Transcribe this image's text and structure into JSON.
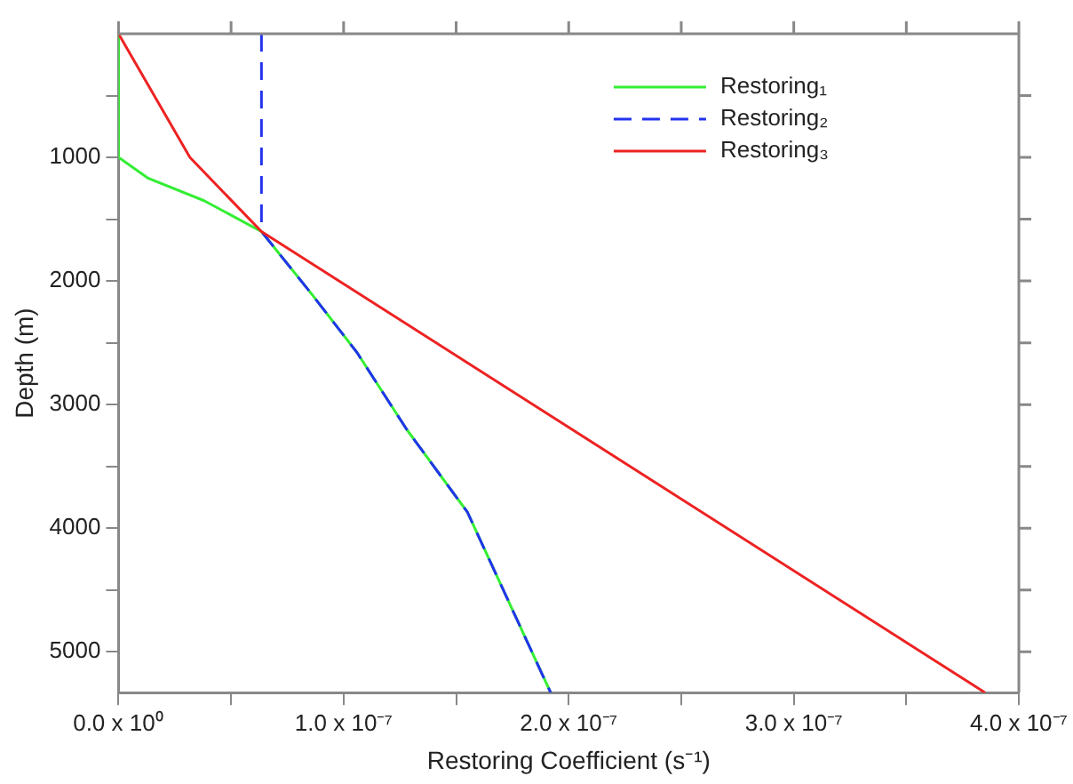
{
  "chart_data": {
    "type": "line",
    "xlabel": "Restoring Coefficient (s⁻¹)",
    "ylabel": "Depth (m)",
    "xlim": [
      0,
      4e-07
    ],
    "ylim": [
      5330,
      0
    ],
    "xticks": [
      {
        "value": 0,
        "label": "0.0 x 10⁰"
      },
      {
        "value": 5e-08,
        "label": null
      },
      {
        "value": 1e-07,
        "label": "1.0 x 10⁻⁷"
      },
      {
        "value": 1.5e-07,
        "label": null
      },
      {
        "value": 2e-07,
        "label": "2.0 x 10⁻⁷"
      },
      {
        "value": 2.5e-07,
        "label": null
      },
      {
        "value": 3e-07,
        "label": "3.0 x 10⁻⁷"
      },
      {
        "value": 3.5e-07,
        "label": null
      },
      {
        "value": 4e-07,
        "label": "4.0 x 10⁻⁷"
      }
    ],
    "yticks": [
      {
        "value": 500,
        "label": null
      },
      1000,
      {
        "value": 1500,
        "label": null
      },
      2000,
      {
        "value": 2500,
        "label": null
      },
      3000,
      {
        "value": 3500,
        "label": null
      },
      4000,
      {
        "value": 4500,
        "label": null
      },
      5000
    ],
    "grid": false,
    "legend": "top right",
    "marker": "none",
    "series": [
      {
        "name": "Restoring₁",
        "color": "#33ee33",
        "line_style": "solid",
        "x": [
          0,
          0,
          1.33e-08,
          3.8e-08,
          6.35e-08,
          8.6e-08,
          1.06e-07,
          1.28e-07,
          1.55e-07,
          1.92e-07
        ],
        "values": [
          0,
          1000,
          1170,
          1350,
          1600,
          2110,
          2580,
          3200,
          3870,
          5330
        ]
      },
      {
        "name": "Restoring₂",
        "color": "#2233ee",
        "line_style": "dashed",
        "x": [
          6.35e-08,
          6.35e-08,
          8.6e-08,
          1.06e-07,
          1.28e-07,
          1.55e-07,
          1.92e-07
        ],
        "values": [
          0,
          1600,
          2110,
          2580,
          3200,
          3870,
          5330
        ]
      },
      {
        "name": "Restoring₃",
        "color": "#ee2222",
        "line_style": "solid",
        "x": [
          0,
          3.17e-08,
          6.35e-08,
          3.85e-07
        ],
        "values": [
          0,
          1000,
          1600,
          5330
        ]
      }
    ]
  }
}
